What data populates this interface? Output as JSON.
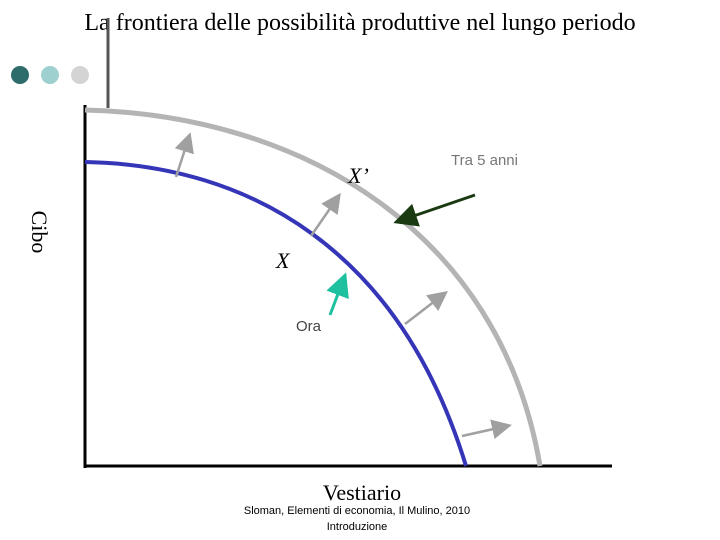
{
  "header": {
    "title": "La frontiera delle possibilità produttive nel lungo periodo"
  },
  "diagram": {
    "y_axis_label": "Cibo",
    "x_axis_label": "Vestiario",
    "new_point_label": "X’",
    "old_point_label": "X",
    "new_frontier_label": "Tra 5 anni",
    "old_frontier_label": "Ora"
  },
  "footer": {
    "source": "Sloman, Elementi di economia, Il Mulino, 2010",
    "section": "Introduzione"
  }
}
